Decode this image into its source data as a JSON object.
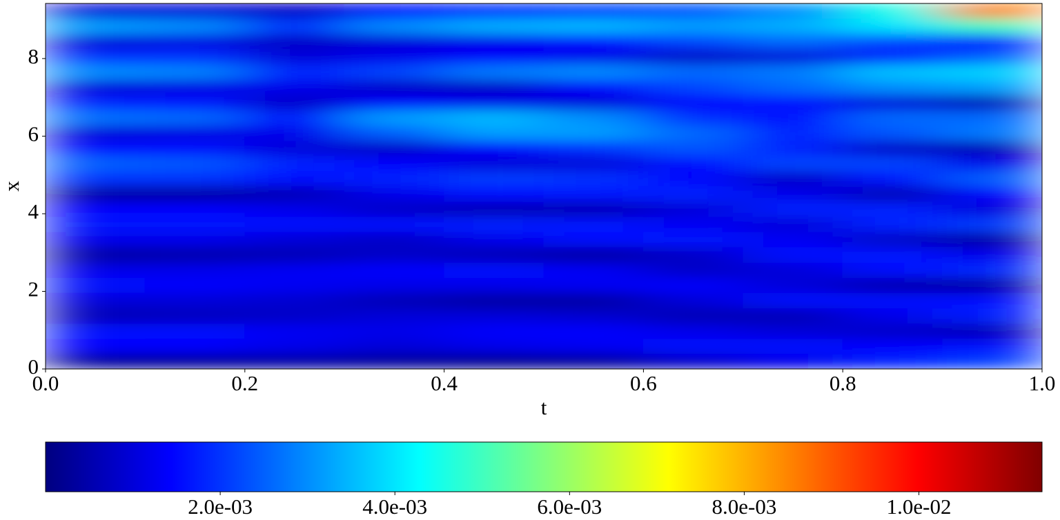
{
  "chart_data": {
    "type": "heatmap",
    "xlabel": "t",
    "ylabel": "x",
    "colormap": "jet",
    "xlim": [
      0,
      1
    ],
    "ylim": [
      0,
      9.42
    ],
    "xticks": [
      {
        "value": 0,
        "label": "0.0"
      },
      0.2,
      0.4,
      0.6,
      0.8,
      {
        "value": 1,
        "label": "1.0"
      }
    ],
    "yticks": [
      0,
      2,
      4,
      6,
      8
    ],
    "x": [
      0.05,
      0.15,
      0.25,
      0.35,
      0.45,
      0.55,
      0.65,
      0.75,
      0.85,
      0.95
    ],
    "y": [
      0.2,
      0.59,
      0.98,
      1.37,
      1.77,
      2.16,
      2.55,
      2.95,
      3.34,
      3.73,
      4.12,
      4.52,
      4.91,
      5.3,
      5.69,
      6.09,
      6.48,
      6.87,
      7.26,
      7.66,
      8.05,
      8.44,
      8.84,
      9.23
    ],
    "z": [
      [
        0.0003,
        0.0003,
        0.0004,
        0.0003,
        0.0002,
        0.0003,
        0.0008,
        0.0012,
        0.0018,
        0.0021
      ],
      [
        0.0014,
        0.0014,
        0.0012,
        0.001,
        0.0012,
        0.0013,
        0.0015,
        0.0015,
        0.0014,
        0.0015
      ],
      [
        0.0016,
        0.0015,
        0.0013,
        0.0012,
        0.0014,
        0.0014,
        0.0012,
        0.001,
        0.0008,
        0.0006
      ],
      [
        0.0006,
        0.0007,
        0.0008,
        0.001,
        0.001,
        0.0009,
        0.0006,
        0.0006,
        0.0012,
        0.0018
      ],
      [
        0.001,
        0.001,
        0.0009,
        0.0006,
        0.0004,
        0.0004,
        0.001,
        0.0015,
        0.0016,
        0.0015
      ],
      [
        0.0015,
        0.0014,
        0.0013,
        0.0012,
        0.0012,
        0.0013,
        0.0014,
        0.001,
        0.0005,
        0.0004
      ],
      [
        0.0012,
        0.0012,
        0.0013,
        0.0014,
        0.0015,
        0.0013,
        0.0008,
        0.001,
        0.0016,
        0.0019
      ],
      [
        0.0004,
        0.0005,
        0.0006,
        0.0008,
        0.0006,
        0.0004,
        0.0008,
        0.0016,
        0.0017,
        0.0012
      ],
      [
        0.0012,
        0.0012,
        0.001,
        0.0008,
        0.0012,
        0.0015,
        0.0017,
        0.0013,
        0.0008,
        0.0004
      ],
      [
        0.0017,
        0.0017,
        0.0016,
        0.0016,
        0.0018,
        0.0017,
        0.0013,
        0.001,
        0.0018,
        0.0021
      ],
      [
        0.0014,
        0.0014,
        0.0012,
        0.0008,
        0.0006,
        0.0006,
        0.001,
        0.0018,
        0.0018,
        0.001
      ],
      [
        0.0004,
        0.0004,
        0.0006,
        0.0012,
        0.0015,
        0.0017,
        0.0018,
        0.0012,
        0.0006,
        0.0014
      ],
      [
        0.002,
        0.002,
        0.0015,
        0.0018,
        0.0021,
        0.002,
        0.0014,
        0.0008,
        0.0017,
        0.0025
      ],
      [
        0.0025,
        0.0024,
        0.0018,
        0.0014,
        0.001,
        0.001,
        0.0016,
        0.0022,
        0.0022,
        0.0012
      ],
      [
        0.0016,
        0.0015,
        0.001,
        0.0008,
        0.0014,
        0.002,
        0.0024,
        0.0018,
        0.0008,
        0.0006
      ],
      [
        0.001,
        0.0011,
        0.0012,
        0.0025,
        0.0032,
        0.0032,
        0.0026,
        0.0018,
        0.0024,
        0.0028
      ],
      [
        0.0027,
        0.0026,
        0.0016,
        0.0032,
        0.0035,
        0.003,
        0.002,
        0.0016,
        0.0026,
        0.0026
      ],
      [
        0.0018,
        0.0017,
        0.0008,
        0.0014,
        0.0012,
        0.001,
        0.0014,
        0.0016,
        0.001,
        0.0006
      ],
      [
        0.001,
        0.0011,
        0.0012,
        0.0008,
        0.0008,
        0.0014,
        0.0022,
        0.0026,
        0.003,
        0.0032
      ],
      [
        0.003,
        0.0029,
        0.0018,
        0.0022,
        0.0028,
        0.003,
        0.0026,
        0.0028,
        0.0036,
        0.0038
      ],
      [
        0.002,
        0.002,
        0.001,
        0.0012,
        0.0014,
        0.0012,
        0.0008,
        0.001,
        0.0018,
        0.0025
      ],
      [
        0.001,
        0.0011,
        0.0008,
        0.001,
        0.0012,
        0.0016,
        0.0022,
        0.0026,
        0.0022,
        0.0015
      ],
      [
        0.0032,
        0.003,
        0.002,
        0.003,
        0.0034,
        0.0035,
        0.0032,
        0.0034,
        0.004,
        0.005
      ],
      [
        0.001,
        0.001,
        0.0008,
        0.0016,
        0.002,
        0.0022,
        0.0024,
        0.003,
        0.0045,
        0.0085
      ]
    ],
    "clim": [
      0,
      0.01141
    ],
    "cticks": [
      {
        "value": 0.002,
        "label": "2.0e-03"
      },
      {
        "value": 0.004,
        "label": "4.0e-03"
      },
      {
        "value": 0.006,
        "label": "6.0e-03"
      },
      {
        "value": 0.008,
        "label": "8.0e-03"
      },
      {
        "value": 0.01,
        "label": "1.0e-02"
      }
    ]
  }
}
